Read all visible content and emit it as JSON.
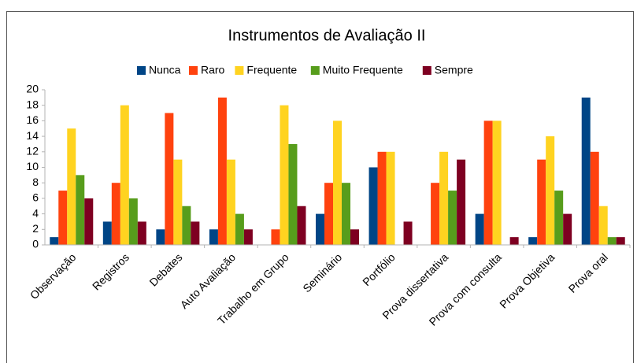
{
  "chart_data": {
    "type": "bar",
    "title": "Instrumentos de Avaliação II",
    "categories": [
      "Observação",
      "Registros",
      "Debates",
      "Auto Avaliação",
      "Trabalho em Grupo",
      "Seminário",
      "Portfólio",
      "Prova dissertativa",
      "Prova com consulta",
      "Prova Objetiva",
      "Prova oral"
    ],
    "series": [
      {
        "name": "Nunca",
        "color": "#004586",
        "values": [
          1,
          3,
          2,
          2,
          0,
          4,
          10,
          0,
          4,
          1,
          19
        ]
      },
      {
        "name": "Raro",
        "color": "#ff420e",
        "values": [
          7,
          8,
          17,
          19,
          2,
          8,
          12,
          8,
          16,
          11,
          12
        ]
      },
      {
        "name": "Frequente",
        "color": "#ffd320",
        "values": [
          15,
          18,
          11,
          11,
          18,
          16,
          12,
          12,
          16,
          14,
          5
        ]
      },
      {
        "name": "Muito Frequente",
        "color": "#579d1c",
        "values": [
          9,
          6,
          5,
          4,
          13,
          8,
          0,
          7,
          0,
          7,
          1
        ]
      },
      {
        "name": "Sempre",
        "color": "#7e0021",
        "values": [
          6,
          3,
          3,
          2,
          5,
          2,
          3,
          11,
          1,
          4,
          1
        ]
      }
    ],
    "ylim": [
      0,
      20
    ],
    "yticks": [
      0,
      2,
      4,
      6,
      8,
      10,
      12,
      14,
      16,
      18,
      20
    ],
    "legend": "top"
  }
}
